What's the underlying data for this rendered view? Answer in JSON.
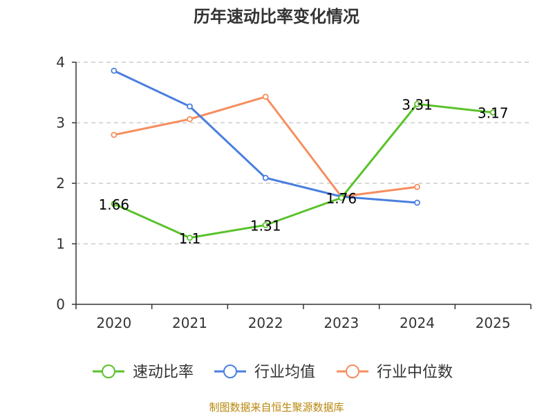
{
  "chart_data": {
    "type": "line",
    "title": "历年速动比率变化情况",
    "categories": [
      "2020",
      "2021",
      "2022",
      "2023",
      "2024",
      "2025"
    ],
    "ylim": [
      0,
      4
    ],
    "yticks": [
      "0",
      "1",
      "2",
      "3",
      "4"
    ],
    "grid": true,
    "legend_position": "bottom",
    "series": [
      {
        "name": "速动比率",
        "color": "#5ac22a",
        "values": [
          1.66,
          1.1,
          1.31,
          1.76,
          3.31,
          3.17
        ],
        "labels": [
          "1.66",
          "1.1",
          "1.31",
          "1.76",
          "3.31",
          "3.17"
        ]
      },
      {
        "name": "行业均值",
        "color": "#4a7fe0",
        "values": [
          3.86,
          3.27,
          2.09,
          1.78,
          1.68,
          null
        ]
      },
      {
        "name": "行业中位数",
        "color": "#f68e5f",
        "values": [
          2.8,
          3.06,
          3.43,
          1.78,
          1.94,
          null
        ]
      }
    ]
  },
  "footer": {
    "source": "制图数据来自恒生聚源数据库",
    "color": "#b8860b"
  }
}
